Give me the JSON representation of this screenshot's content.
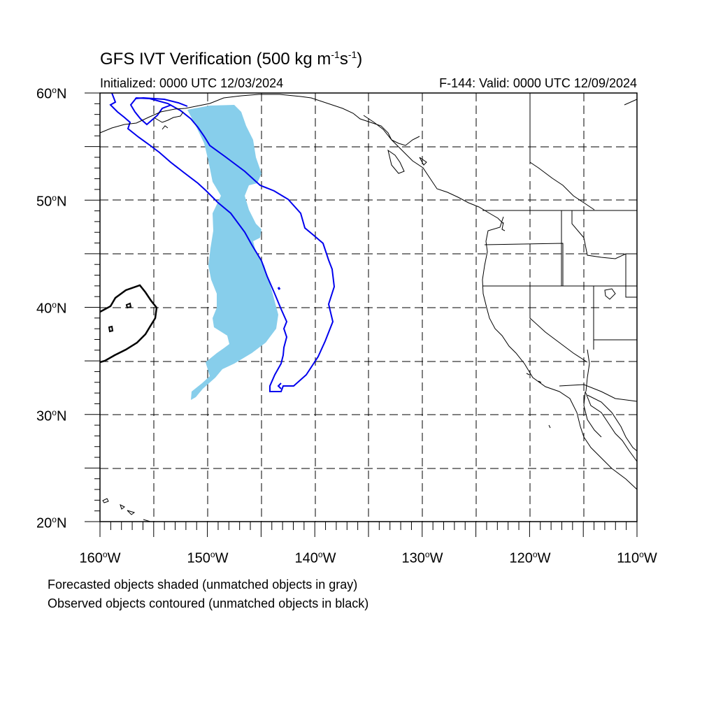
{
  "title": {
    "main_prefix": "GFS IVT Verification (500 kg m",
    "exp1": "-1",
    "mid": "s",
    "exp2": "-1",
    "suffix": ")"
  },
  "subtitle": {
    "initialized": "Initialized: 0000 UTC 12/03/2024",
    "valid": "F-144: Valid: 0000 UTC 12/09/2024"
  },
  "lat_labels": [
    {
      "value": "60",
      "suffix": "N"
    },
    {
      "value": "50",
      "suffix": "N"
    },
    {
      "value": "40",
      "suffix": "N"
    },
    {
      "value": "30",
      "suffix": "N"
    },
    {
      "value": "20",
      "suffix": "N"
    }
  ],
  "lon_labels": [
    {
      "value": "160",
      "suffix": "W"
    },
    {
      "value": "150",
      "suffix": "W"
    },
    {
      "value": "140",
      "suffix": "W"
    },
    {
      "value": "130",
      "suffix": "W"
    },
    {
      "value": "120",
      "suffix": "W"
    },
    {
      "value": "110",
      "suffix": "W"
    }
  ],
  "notes": {
    "forecast": "Forecasted objects shaded (unmatched objects in gray)",
    "observed": "Observed objects contoured (unmatched objects in black)"
  },
  "colors": {
    "forecast_shade": "#87ceeb",
    "observed_matched": "#0000ee",
    "observed_unmatched": "#000000",
    "grid": "#000000"
  }
}
